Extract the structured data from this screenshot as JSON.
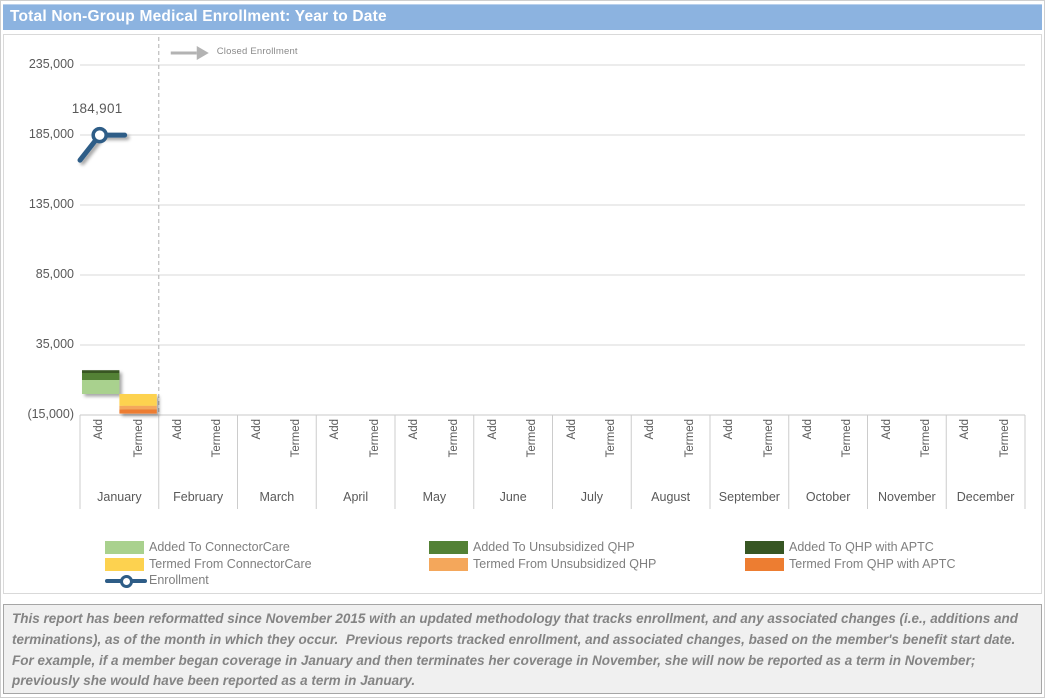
{
  "header": {
    "title": "Total Non-Group Medical Enrollment: Year to Date",
    "bar_color": "#8cb3e0"
  },
  "chart_data": {
    "type": "combo_stacked_bar_line",
    "title": "Total Non-Group Medical Enrollment: Year to Date",
    "months": [
      "January",
      "February",
      "March",
      "April",
      "May",
      "June",
      "July",
      "August",
      "September",
      "October",
      "November",
      "December"
    ],
    "sub_categories": [
      "Add",
      "Termed"
    ],
    "y_axis": {
      "tick_labels": [
        "235,000",
        "185,000",
        "135,000",
        "85,000",
        "35,000",
        "(15,000)"
      ],
      "tick_values": [
        235000,
        185000,
        135000,
        85000,
        35000,
        -15000
      ],
      "min": -15000,
      "gridline_interval": 50000,
      "gridlines": true
    },
    "bar_series": [
      {
        "name": "Added To ConnectorCare",
        "color": "#a9d18e",
        "sub": "Add",
        "values_by_month": [
          10000,
          0,
          0,
          0,
          0,
          0,
          0,
          0,
          0,
          0,
          0,
          0
        ]
      },
      {
        "name": "Added To Unsubsidized QHP",
        "color": "#538135",
        "sub": "Add",
        "values_by_month": [
          5000,
          0,
          0,
          0,
          0,
          0,
          0,
          0,
          0,
          0,
          0,
          0
        ]
      },
      {
        "name": "Added To QHP with APTC",
        "color": "#375623",
        "sub": "Add",
        "values_by_month": [
          2000,
          0,
          0,
          0,
          0,
          0,
          0,
          0,
          0,
          0,
          0,
          0
        ]
      },
      {
        "name": "Termed From ConnectorCare",
        "color": "#fdd24f",
        "sub": "Termed",
        "values_by_month": [
          -8500,
          0,
          0,
          0,
          0,
          0,
          0,
          0,
          0,
          0,
          0,
          0
        ]
      },
      {
        "name": "Termed From Unsubsidized QHP",
        "color": "#f4a75b",
        "sub": "Termed",
        "values_by_month": [
          -2500,
          0,
          0,
          0,
          0,
          0,
          0,
          0,
          0,
          0,
          0,
          0
        ]
      },
      {
        "name": "Termed From QHP with APTC",
        "color": "#ed7d31",
        "sub": "Termed",
        "values_by_month": [
          -3000,
          0,
          0,
          0,
          0,
          0,
          0,
          0,
          0,
          0,
          0,
          0
        ]
      }
    ],
    "line_series": {
      "name": "Enrollment",
      "color": "#2e5d87",
      "data_label": "184,901",
      "january_value": 184901,
      "line_start_value_estimate": 167000
    },
    "annotation": {
      "label": "Closed Enrollment",
      "dashed_line_after_month": "January"
    }
  },
  "legend": {
    "columns": [
      [
        {
          "label": "Added To ConnectorCare",
          "color": "#a9d18e",
          "key": "swatch"
        },
        {
          "label": "Termed From ConnectorCare",
          "color": "#fdd24f",
          "key": "swatch"
        },
        {
          "label": "Enrollment",
          "color": "#2e5d87",
          "key": "line"
        }
      ],
      [
        {
          "label": "Added To Unsubsidized QHP",
          "color": "#538135",
          "key": "swatch"
        },
        {
          "label": "Termed From Unsubsidized QHP",
          "color": "#f4a75b",
          "key": "swatch"
        }
      ],
      [
        {
          "label": "Added To QHP with APTC",
          "color": "#375623",
          "key": "swatch"
        },
        {
          "label": "Termed From QHP with APTC",
          "color": "#ed7d31",
          "key": "swatch"
        }
      ]
    ]
  },
  "footer": {
    "text": "This report has been reformatted since November 2015 with an updated methodology that tracks enrollment, and any associated changes (i.e., additions and terminations), as of the month in which they occur.  Previous reports tracked enrollment, and associated changes, based on the member's benefit start date.  For example, if a member began coverage in January and then terminates her coverage in November, she will now be reported as a term in November; previously she would have been reported as a term in January."
  }
}
